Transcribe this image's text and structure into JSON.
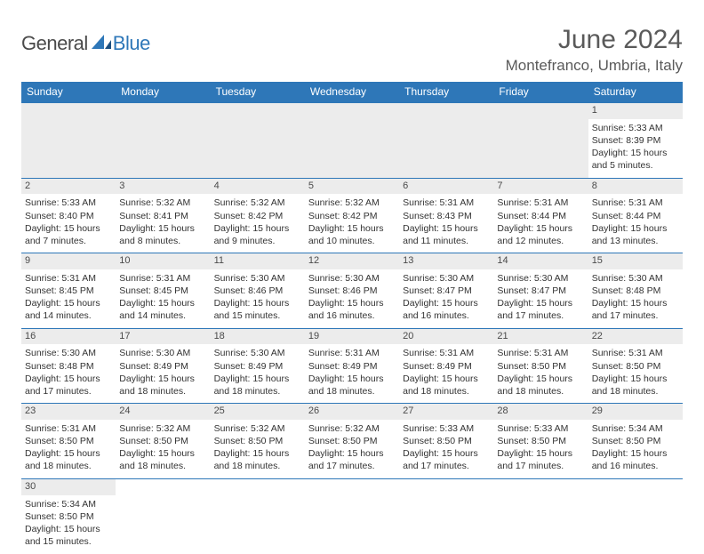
{
  "brand": {
    "part1": "General",
    "part2": "Blue"
  },
  "title": "June 2024",
  "location": "Montefranco, Umbria, Italy",
  "colors": {
    "header_bg": "#2e77b8",
    "header_text": "#ffffff",
    "daynum_bg": "#ececec",
    "border": "#2e77b8",
    "text": "#333333",
    "brand_blue": "#2e77b8",
    "brand_gray": "#4a4a4a"
  },
  "weekdays": [
    "Sunday",
    "Monday",
    "Tuesday",
    "Wednesday",
    "Thursday",
    "Friday",
    "Saturday"
  ],
  "leading_blanks": 6,
  "days": [
    {
      "n": "1",
      "sr": "5:33 AM",
      "ss": "8:39 PM",
      "dl": "15 hours and 5 minutes."
    },
    {
      "n": "2",
      "sr": "5:33 AM",
      "ss": "8:40 PM",
      "dl": "15 hours and 7 minutes."
    },
    {
      "n": "3",
      "sr": "5:32 AM",
      "ss": "8:41 PM",
      "dl": "15 hours and 8 minutes."
    },
    {
      "n": "4",
      "sr": "5:32 AM",
      "ss": "8:42 PM",
      "dl": "15 hours and 9 minutes."
    },
    {
      "n": "5",
      "sr": "5:32 AM",
      "ss": "8:42 PM",
      "dl": "15 hours and 10 minutes."
    },
    {
      "n": "6",
      "sr": "5:31 AM",
      "ss": "8:43 PM",
      "dl": "15 hours and 11 minutes."
    },
    {
      "n": "7",
      "sr": "5:31 AM",
      "ss": "8:44 PM",
      "dl": "15 hours and 12 minutes."
    },
    {
      "n": "8",
      "sr": "5:31 AM",
      "ss": "8:44 PM",
      "dl": "15 hours and 13 minutes."
    },
    {
      "n": "9",
      "sr": "5:31 AM",
      "ss": "8:45 PM",
      "dl": "15 hours and 14 minutes."
    },
    {
      "n": "10",
      "sr": "5:31 AM",
      "ss": "8:45 PM",
      "dl": "15 hours and 14 minutes."
    },
    {
      "n": "11",
      "sr": "5:30 AM",
      "ss": "8:46 PM",
      "dl": "15 hours and 15 minutes."
    },
    {
      "n": "12",
      "sr": "5:30 AM",
      "ss": "8:46 PM",
      "dl": "15 hours and 16 minutes."
    },
    {
      "n": "13",
      "sr": "5:30 AM",
      "ss": "8:47 PM",
      "dl": "15 hours and 16 minutes."
    },
    {
      "n": "14",
      "sr": "5:30 AM",
      "ss": "8:47 PM",
      "dl": "15 hours and 17 minutes."
    },
    {
      "n": "15",
      "sr": "5:30 AM",
      "ss": "8:48 PM",
      "dl": "15 hours and 17 minutes."
    },
    {
      "n": "16",
      "sr": "5:30 AM",
      "ss": "8:48 PM",
      "dl": "15 hours and 17 minutes."
    },
    {
      "n": "17",
      "sr": "5:30 AM",
      "ss": "8:49 PM",
      "dl": "15 hours and 18 minutes."
    },
    {
      "n": "18",
      "sr": "5:30 AM",
      "ss": "8:49 PM",
      "dl": "15 hours and 18 minutes."
    },
    {
      "n": "19",
      "sr": "5:31 AM",
      "ss": "8:49 PM",
      "dl": "15 hours and 18 minutes."
    },
    {
      "n": "20",
      "sr": "5:31 AM",
      "ss": "8:49 PM",
      "dl": "15 hours and 18 minutes."
    },
    {
      "n": "21",
      "sr": "5:31 AM",
      "ss": "8:50 PM",
      "dl": "15 hours and 18 minutes."
    },
    {
      "n": "22",
      "sr": "5:31 AM",
      "ss": "8:50 PM",
      "dl": "15 hours and 18 minutes."
    },
    {
      "n": "23",
      "sr": "5:31 AM",
      "ss": "8:50 PM",
      "dl": "15 hours and 18 minutes."
    },
    {
      "n": "24",
      "sr": "5:32 AM",
      "ss": "8:50 PM",
      "dl": "15 hours and 18 minutes."
    },
    {
      "n": "25",
      "sr": "5:32 AM",
      "ss": "8:50 PM",
      "dl": "15 hours and 18 minutes."
    },
    {
      "n": "26",
      "sr": "5:32 AM",
      "ss": "8:50 PM",
      "dl": "15 hours and 17 minutes."
    },
    {
      "n": "27",
      "sr": "5:33 AM",
      "ss": "8:50 PM",
      "dl": "15 hours and 17 minutes."
    },
    {
      "n": "28",
      "sr": "5:33 AM",
      "ss": "8:50 PM",
      "dl": "15 hours and 17 minutes."
    },
    {
      "n": "29",
      "sr": "5:34 AM",
      "ss": "8:50 PM",
      "dl": "15 hours and 16 minutes."
    },
    {
      "n": "30",
      "sr": "5:34 AM",
      "ss": "8:50 PM",
      "dl": "15 hours and 15 minutes."
    }
  ],
  "labels": {
    "sunrise": "Sunrise: ",
    "sunset": "Sunset: ",
    "daylight": "Daylight: "
  }
}
